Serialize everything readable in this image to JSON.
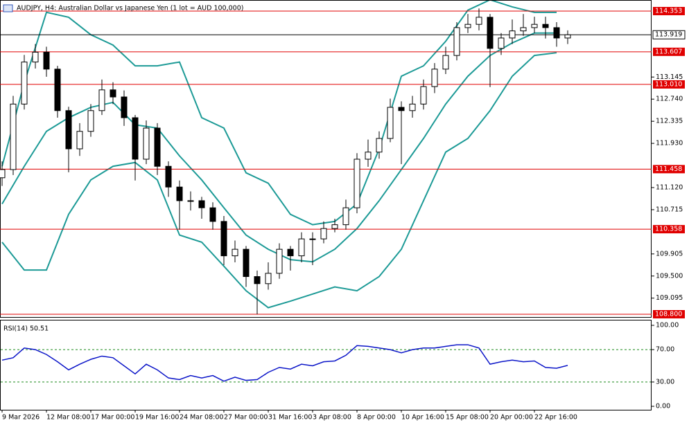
{
  "chart_data": {
    "type": "candlestick",
    "title": "AUDJPY, H4: Australian Dollar vs Japanese Yen (1 lot = AUD 100,000)",
    "categories": [
      "9 Mar 2026",
      null,
      null,
      null,
      "12 Mar 08:00",
      null,
      null,
      null,
      "17 Mar 00:00",
      null,
      null,
      null,
      "19 Mar 16:00",
      null,
      null,
      null,
      "24 Mar 08:00",
      null,
      null,
      null,
      "27 Mar 00:00",
      null,
      null,
      null,
      "31 Mar 16:00",
      null,
      null,
      null,
      "3 Apr 08:00",
      null,
      null,
      null,
      "8 Apr 00:00",
      null,
      null,
      null,
      "10 Apr 16:00",
      null,
      null,
      null,
      "15 Apr 08:00",
      null,
      null,
      null,
      "20 Apr 00:00",
      null,
      null,
      null,
      "22 Apr 16:00",
      null,
      null,
      null
    ],
    "open": [
      111.3,
      111.45,
      112.65,
      113.42,
      113.6,
      113.29,
      112.53,
      111.83,
      112.15,
      112.53,
      112.91,
      112.78,
      112.4,
      111.64,
      112.21,
      111.51,
      111.13,
      110.88,
      110.88,
      110.75,
      110.5,
      109.87,
      109.99,
      109.49,
      109.36,
      109.55,
      109.99,
      109.87,
      110.18,
      110.18,
      110.37,
      110.44,
      110.75,
      111.64,
      111.77,
      112.02,
      112.59,
      112.53,
      112.65,
      112.97,
      113.29,
      113.54,
      114.05,
      114.11,
      114.24,
      113.67,
      113.86,
      113.99,
      114.05,
      114.11,
      114.05,
      113.86
    ],
    "high": [
      111.6,
      112.8,
      113.55,
      113.75,
      113.7,
      113.35,
      112.6,
      112.3,
      112.65,
      113.1,
      113.05,
      112.9,
      112.45,
      112.35,
      112.3,
      111.6,
      111.25,
      111.05,
      110.95,
      110.85,
      110.6,
      110.15,
      110.05,
      109.6,
      109.75,
      110.1,
      110.05,
      110.3,
      110.3,
      110.5,
      110.55,
      110.9,
      111.75,
      112.0,
      112.15,
      112.75,
      112.7,
      112.8,
      113.1,
      113.4,
      113.7,
      114.15,
      114.3,
      114.4,
      114.3,
      113.95,
      114.2,
      114.3,
      114.25,
      114.25,
      114.15,
      114.0
    ],
    "low": [
      111.15,
      111.35,
      112.55,
      113.3,
      113.15,
      112.4,
      111.4,
      111.7,
      112.05,
      112.45,
      112.65,
      112.25,
      111.25,
      111.55,
      111.35,
      110.95,
      110.35,
      110.7,
      110.55,
      110.35,
      109.7,
      109.75,
      109.3,
      108.8,
      109.25,
      109.45,
      109.6,
      109.75,
      109.7,
      110.1,
      110.3,
      110.35,
      110.65,
      111.5,
      111.65,
      111.95,
      111.55,
      112.4,
      112.55,
      112.85,
      113.2,
      113.45,
      113.95,
      114.0,
      112.96,
      113.55,
      113.75,
      113.9,
      113.95,
      113.85,
      113.7,
      113.75
    ],
    "close": [
      111.45,
      112.65,
      113.42,
      113.6,
      113.29,
      112.53,
      111.83,
      112.15,
      112.53,
      112.91,
      112.78,
      112.4,
      111.64,
      112.21,
      111.51,
      111.13,
      110.88,
      110.88,
      110.75,
      110.5,
      109.87,
      109.99,
      109.49,
      109.36,
      109.55,
      109.99,
      109.87,
      110.18,
      110.18,
      110.37,
      110.44,
      110.75,
      111.64,
      111.77,
      112.02,
      112.59,
      112.53,
      112.65,
      112.97,
      113.29,
      113.54,
      114.05,
      114.11,
      114.24,
      113.67,
      113.86,
      113.99,
      114.05,
      114.11,
      114.05,
      113.86,
      113.919
    ],
    "bands": {
      "color": "#1c9a96",
      "upper": [
        111.51,
        113.04,
        114.33,
        114.24,
        113.92,
        113.73,
        113.35,
        113.35,
        113.42,
        112.4,
        112.21,
        111.39,
        111.2,
        110.63,
        110.44,
        110.5,
        110.82,
        111.83,
        113.16,
        113.35,
        113.8,
        114.37,
        114.56,
        114.43,
        114.33,
        114.33
      ],
      "middle": [
        110.82,
        111.51,
        112.15,
        112.4,
        112.59,
        112.68,
        112.27,
        112.21,
        111.7,
        111.26,
        110.75,
        110.25,
        109.99,
        109.8,
        109.76,
        109.99,
        110.37,
        110.88,
        111.45,
        112.02,
        112.65,
        113.16,
        113.54,
        113.77,
        113.95,
        113.95
      ],
      "lower": [
        110.12,
        109.61,
        109.61,
        110.63,
        111.26,
        111.51,
        111.58,
        111.26,
        110.25,
        110.12,
        109.68,
        109.23,
        108.92,
        109.04,
        109.17,
        109.3,
        109.23,
        109.49,
        109.99,
        110.88,
        111.77,
        112.02,
        112.53,
        113.16,
        113.54,
        113.59
      ]
    },
    "ylim": [
      108.749,
      114.556
    ],
    "yticks": [
      {
        "value": 113.145,
        "label": "113.145"
      },
      {
        "value": 112.74,
        "label": "112.740"
      },
      {
        "value": 112.335,
        "label": "112.335"
      },
      {
        "value": 111.93,
        "label": "111.930"
      },
      {
        "value": 111.12,
        "label": "111.120"
      },
      {
        "value": 110.715,
        "label": "110.715"
      },
      {
        "value": 109.905,
        "label": "109.905"
      },
      {
        "value": 109.5,
        "label": "109.500"
      },
      {
        "value": 109.095,
        "label": "109.095"
      }
    ],
    "levels": [
      114.353,
      113.607,
      113.01,
      111.458,
      110.358,
      108.8
    ],
    "level_labels": [
      "114.353",
      "113.607",
      "113.010",
      "111.458",
      "110.358",
      "108.800"
    ],
    "level_color": "#e00000",
    "current_price": 113.919,
    "current_price_label": "113.919",
    "rsi": {
      "title": "RSI(14) 50.51",
      "color": "#0a14c8",
      "values": [
        57,
        60,
        72,
        70,
        64,
        55,
        45,
        52,
        58,
        62,
        60,
        50,
        40,
        52,
        45,
        35,
        33,
        38,
        35,
        38,
        31,
        36,
        32,
        33,
        42,
        48,
        46,
        52,
        50,
        55,
        56,
        63,
        75,
        74,
        72,
        70,
        66,
        70,
        72,
        72,
        74,
        76,
        76,
        72,
        52,
        55,
        57,
        55,
        56,
        48,
        47,
        50.51
      ],
      "ylim": [
        0,
        100
      ],
      "yticks": [
        {
          "value": 100,
          "label": "100.00"
        },
        {
          "value": 70,
          "label": "70.00"
        },
        {
          "value": 30,
          "label": "30.00"
        },
        {
          "value": 0,
          "label": "0.00"
        }
      ],
      "levels": [
        70,
        30
      ]
    }
  }
}
